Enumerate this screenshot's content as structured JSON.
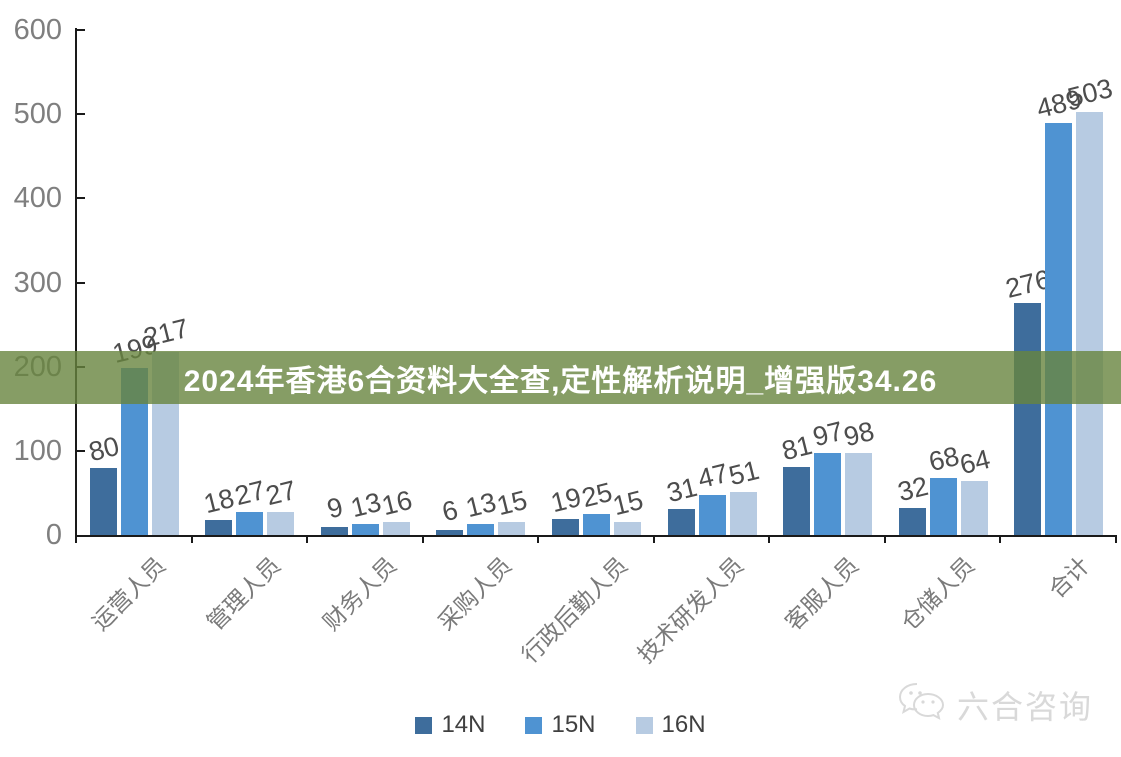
{
  "banner": {
    "text": "2024年香港6合资料大全查,定性解析说明_增强版34.26",
    "bg_color": "#68853e",
    "text_color": "#ffffff"
  },
  "chart_data": {
    "type": "bar",
    "title": "",
    "xlabel": "",
    "ylabel": "",
    "categories": [
      "运营人员",
      "管理人员",
      "财务人员",
      "采购人员",
      "行政后勤人员",
      "技术研发人员",
      "客服人员",
      "仓储人员",
      "合计"
    ],
    "series": [
      {
        "name": "14N",
        "color": "#3e6d9c",
        "values": [
          80,
          18,
          9,
          6,
          19,
          31,
          81,
          32,
          276
        ]
      },
      {
        "name": "15N",
        "color": "#4f93d2",
        "values": [
          199,
          27,
          13,
          13,
          25,
          47,
          97,
          68,
          489
        ]
      },
      {
        "name": "16N",
        "color": "#b7cbe2",
        "values": [
          217,
          27,
          16,
          15,
          15,
          51,
          98,
          64,
          503
        ]
      }
    ],
    "ylim": [
      0,
      600
    ],
    "yticks": [
      0,
      100,
      200,
      300,
      400,
      500,
      600
    ],
    "grid": false,
    "legend_position": "bottom",
    "axis_color": "#1a1a1a",
    "tick_label_color": "#7f7f7f",
    "bar_label_color": "#4d4d4d"
  },
  "footer": {
    "logo_text": "六合咨询",
    "logo_icon": "wechat-chat-bubbles-icon"
  }
}
